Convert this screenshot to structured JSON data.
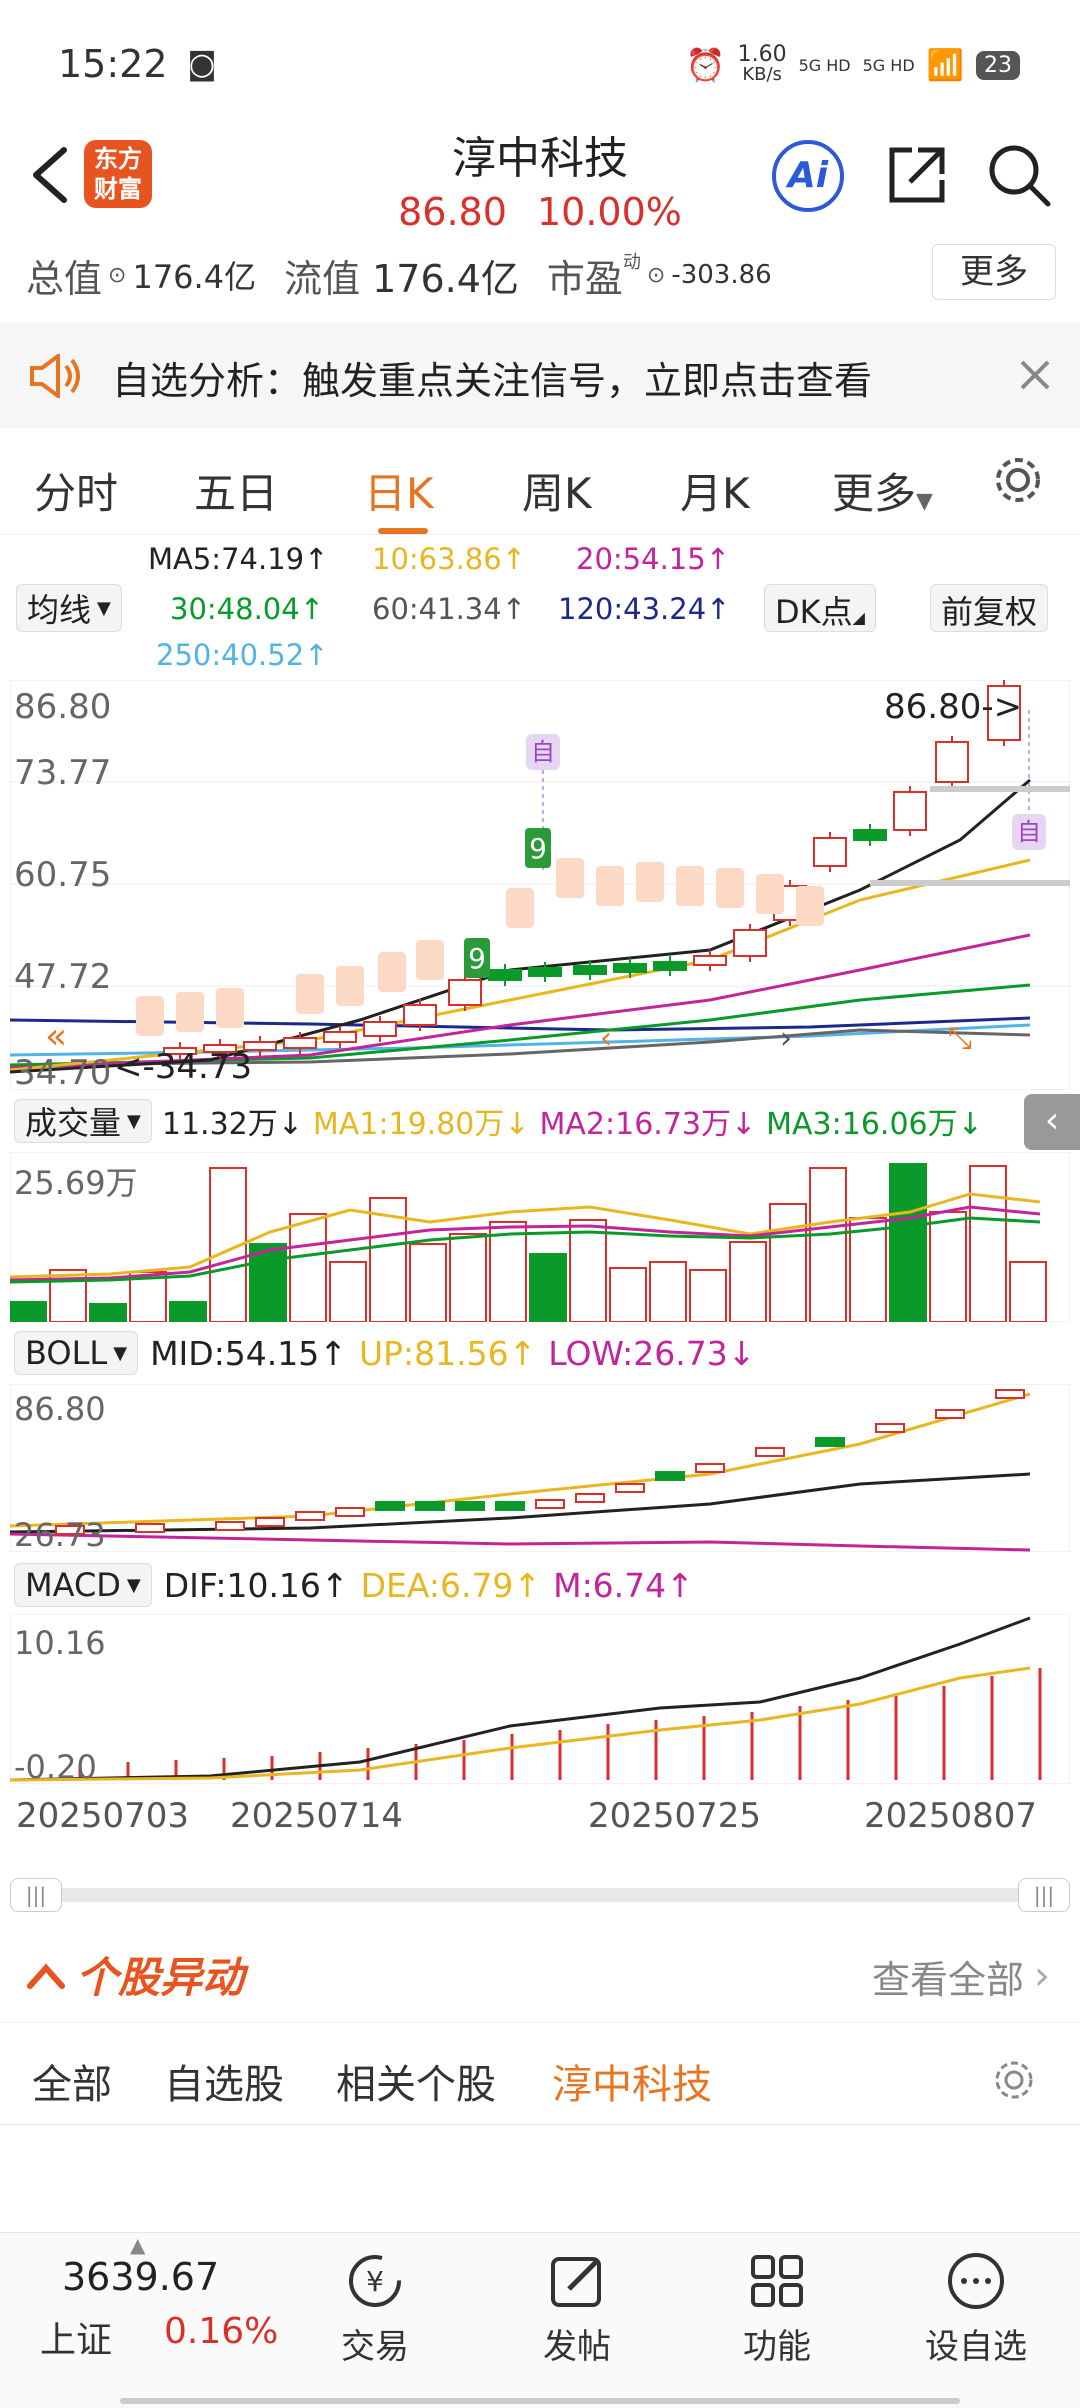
{
  "status_bar": {
    "time": "15:22",
    "net_speed": "1.60",
    "net_unit": "KB/s",
    "signal1": "5G HD",
    "signal2": "5G HD",
    "battery": "23"
  },
  "header": {
    "logo_line1": "东方",
    "logo_line2": "财富",
    "stock_name": "淳中科技",
    "price": "86.80",
    "change_pct": "10.00%",
    "ai_label": "Ai"
  },
  "stats": {
    "total_label": "总值",
    "total_value": "176.4亿",
    "float_label": "流值",
    "float_value": "176.4亿",
    "pe_label": "市盈",
    "pe_sup": "动",
    "pe_value": "-303.86",
    "more_button": "更多"
  },
  "banner": {
    "text": "自选分析：触发重点关注信号，立即点击查看"
  },
  "tabs": [
    {
      "label": "分时"
    },
    {
      "label": "五日"
    },
    {
      "label": "日K"
    },
    {
      "label": "周K"
    },
    {
      "label": "月K"
    },
    {
      "label": "更多"
    }
  ],
  "ma_legend": {
    "selector": "均线",
    "ma5": "MA5:74.19↑",
    "ma10": "10:63.86↑",
    "ma20": "20:54.15↑",
    "ma30": "30:48.04↑",
    "ma60": "60:41.34↑",
    "ma120": "120:43.24↑",
    "ma250": "250:40.52↑",
    "dk_button": "DK点",
    "fq_button": "前复权"
  },
  "kline": {
    "y_labels": [
      "86.80",
      "73.77",
      "60.75",
      "47.72",
      "34.70"
    ],
    "high_tag": "86.80->",
    "low_tag": "<-34.73",
    "zi_tag": "自",
    "green_nine": "9"
  },
  "volume": {
    "selector": "成交量",
    "current": "11.32万↓",
    "ma1": "MA1:19.80万↓",
    "ma2": "MA2:16.73万↓",
    "ma3": "MA3:16.06万↓",
    "y_label": "25.69万"
  },
  "boll": {
    "selector": "BOLL",
    "mid": "MID:54.15↑",
    "up": "UP:81.56↑",
    "low": "LOW:26.73↓",
    "y_top": "86.80",
    "y_bottom": "26.73"
  },
  "macd": {
    "selector": "MACD",
    "dif": "DIF:10.16↑",
    "dea": "DEA:6.79↑",
    "m": "M:6.74↑",
    "y_top": "10.16",
    "y_bottom": "-0.20"
  },
  "dates": [
    "20250703",
    "20250714",
    "20250725",
    "20250807"
  ],
  "movement": {
    "title": "个股异动",
    "view_all": "查看全部"
  },
  "sub_tabs": [
    {
      "label": "全部"
    },
    {
      "label": "自选股"
    },
    {
      "label": "相关个股"
    },
    {
      "label": "淳中科技"
    }
  ],
  "bottom_nav": {
    "index_value": "3639.67",
    "index_name": "上证",
    "index_change": "0.16%",
    "items": [
      {
        "label": "交易"
      },
      {
        "label": "发帖"
      },
      {
        "label": "功能"
      },
      {
        "label": "设自选"
      }
    ]
  },
  "colors": {
    "up": "#d8312b",
    "down": "#0a9a2a",
    "accent": "#e8741f"
  }
}
